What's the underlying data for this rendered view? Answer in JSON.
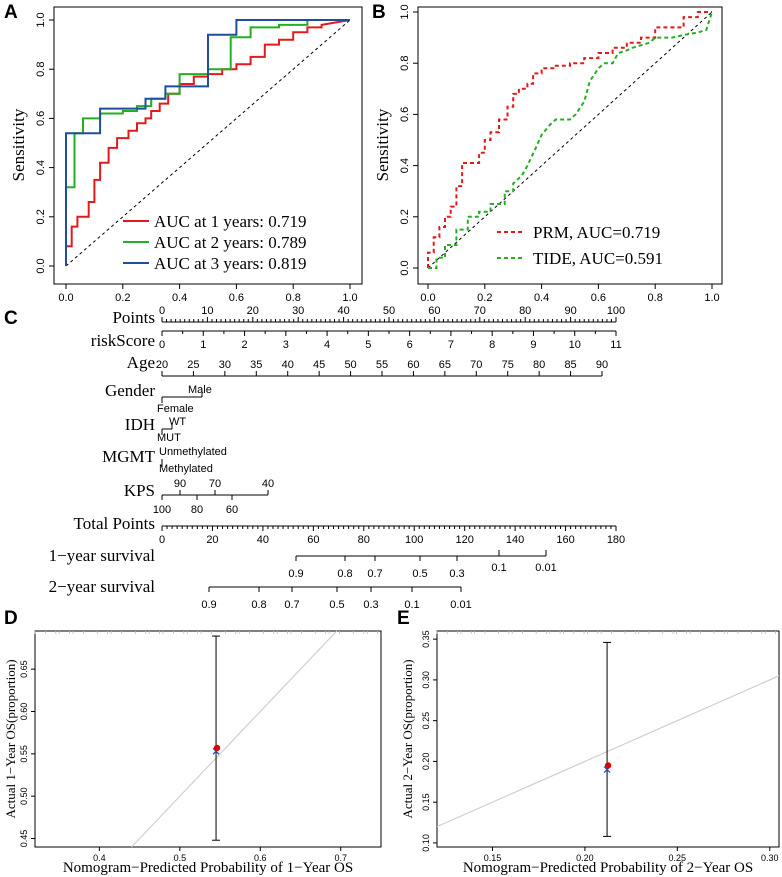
{
  "colors": {
    "red": "#e31a1c",
    "green": "#22b022",
    "blue": "#1f4e9e",
    "black": "#000000",
    "diag": "#000000",
    "calib_line": "#cfcfcf",
    "point_red": "#e00000",
    "point_blue": "#2a5db0"
  },
  "panel_labels": [
    "A",
    "B",
    "C",
    "D",
    "E"
  ],
  "chart_data": [
    {
      "panel": "A",
      "type": "line",
      "title": "",
      "xlabel": "",
      "ylabel": "Sensitivity",
      "xlim": [
        0,
        1
      ],
      "ylim": [
        0,
        1
      ],
      "xticks": [
        "0.0",
        "0.2",
        "0.4",
        "0.6",
        "0.8",
        "1.0"
      ],
      "yticks": [
        "0.0",
        "0.2",
        "0.4",
        "0.6",
        "0.8",
        "1.0"
      ],
      "legend": [
        "AUC at 1 years: 0.719",
        "AUC at 2 years: 0.789",
        "AUC at 3 years: 0.819"
      ],
      "series": [
        {
          "name": "AUC at 1 years: 0.719",
          "color": "red",
          "x": [
            0,
            0,
            0.02,
            0.02,
            0.04,
            0.04,
            0.08,
            0.08,
            0.1,
            0.1,
            0.12,
            0.12,
            0.15,
            0.15,
            0.18,
            0.18,
            0.22,
            0.22,
            0.25,
            0.25,
            0.28,
            0.28,
            0.3,
            0.3,
            0.33,
            0.33,
            0.36,
            0.36,
            0.4,
            0.4,
            0.45,
            0.45,
            0.5,
            0.5,
            0.55,
            0.55,
            0.6,
            0.6,
            0.65,
            0.65,
            0.7,
            0.7,
            0.75,
            0.75,
            0.8,
            0.8,
            0.85,
            0.85,
            0.9,
            0.9,
            1.0
          ],
          "y": [
            0,
            0.08,
            0.08,
            0.16,
            0.16,
            0.2,
            0.2,
            0.26,
            0.26,
            0.35,
            0.35,
            0.42,
            0.42,
            0.48,
            0.48,
            0.52,
            0.52,
            0.55,
            0.55,
            0.58,
            0.58,
            0.6,
            0.6,
            0.63,
            0.63,
            0.66,
            0.66,
            0.7,
            0.7,
            0.74,
            0.74,
            0.77,
            0.77,
            0.78,
            0.78,
            0.8,
            0.8,
            0.82,
            0.82,
            0.85,
            0.85,
            0.9,
            0.9,
            0.92,
            0.92,
            0.95,
            0.95,
            0.97,
            0.97,
            0.98,
            1.0
          ]
        },
        {
          "name": "AUC at 2 years: 0.789",
          "color": "green",
          "x": [
            0,
            0,
            0.03,
            0.03,
            0.06,
            0.06,
            0.12,
            0.12,
            0.2,
            0.2,
            0.25,
            0.25,
            0.3,
            0.3,
            0.35,
            0.35,
            0.4,
            0.4,
            0.5,
            0.5,
            0.58,
            0.58,
            0.65,
            0.65,
            0.75,
            0.75,
            0.85,
            0.85,
            1.0
          ],
          "y": [
            0,
            0.32,
            0.32,
            0.54,
            0.54,
            0.6,
            0.6,
            0.62,
            0.62,
            0.63,
            0.63,
            0.65,
            0.65,
            0.68,
            0.68,
            0.7,
            0.7,
            0.78,
            0.78,
            0.8,
            0.8,
            0.93,
            0.93,
            0.97,
            0.97,
            0.98,
            0.98,
            1.0,
            1.0
          ]
        },
        {
          "name": "AUC at 3 years: 0.819",
          "color": "blue",
          "x": [
            0,
            0,
            0.12,
            0.12,
            0.22,
            0.22,
            0.28,
            0.28,
            0.35,
            0.35,
            0.4,
            0.4,
            0.5,
            0.5,
            0.6,
            0.6,
            0.72,
            0.72,
            0.82,
            0.82,
            1.0
          ],
          "y": [
            0,
            0.54,
            0.54,
            0.64,
            0.64,
            0.64,
            0.64,
            0.68,
            0.68,
            0.73,
            0.73,
            0.73,
            0.73,
            0.94,
            0.94,
            1.0,
            1.0,
            1.0,
            1.0,
            1.0,
            1.0
          ]
        }
      ]
    },
    {
      "panel": "B",
      "type": "line",
      "title": "",
      "xlabel": "",
      "ylabel": "Sensitivity",
      "xlim": [
        0,
        1
      ],
      "ylim": [
        0,
        1
      ],
      "xticks": [
        "0.0",
        "0.2",
        "0.4",
        "0.6",
        "0.8",
        "1.0"
      ],
      "yticks": [
        "0.0",
        "0.2",
        "0.4",
        "0.6",
        "0.8",
        "1.0"
      ],
      "legend": [
        "PRM, AUC=0.719",
        "TIDE, AUC=0.591"
      ],
      "series": [
        {
          "name": "PRM, AUC=0.719",
          "color": "red",
          "x": [
            0,
            0,
            0.02,
            0.02,
            0.04,
            0.04,
            0.06,
            0.06,
            0.08,
            0.08,
            0.1,
            0.1,
            0.12,
            0.12,
            0.15,
            0.15,
            0.18,
            0.18,
            0.2,
            0.2,
            0.22,
            0.22,
            0.25,
            0.25,
            0.28,
            0.28,
            0.3,
            0.3,
            0.32,
            0.32,
            0.35,
            0.35,
            0.37,
            0.37,
            0.4,
            0.4,
            0.45,
            0.45,
            0.5,
            0.5,
            0.55,
            0.55,
            0.6,
            0.6,
            0.65,
            0.65,
            0.7,
            0.7,
            0.75,
            0.75,
            0.8,
            0.8,
            0.9,
            0.9,
            0.95,
            0.95,
            1.0
          ],
          "y": [
            0,
            0.06,
            0.06,
            0.12,
            0.12,
            0.16,
            0.16,
            0.2,
            0.2,
            0.24,
            0.24,
            0.32,
            0.32,
            0.41,
            0.41,
            0.41,
            0.41,
            0.45,
            0.45,
            0.5,
            0.5,
            0.53,
            0.53,
            0.58,
            0.58,
            0.63,
            0.63,
            0.68,
            0.68,
            0.7,
            0.7,
            0.72,
            0.72,
            0.76,
            0.76,
            0.78,
            0.78,
            0.79,
            0.79,
            0.8,
            0.8,
            0.82,
            0.82,
            0.84,
            0.84,
            0.86,
            0.86,
            0.88,
            0.88,
            0.9,
            0.9,
            0.94,
            0.94,
            0.98,
            0.98,
            1.0,
            1.0
          ]
        },
        {
          "name": "TIDE, AUC=0.591",
          "color": "green",
          "x": [
            0,
            0.03,
            0.03,
            0.06,
            0.06,
            0.1,
            0.1,
            0.14,
            0.14,
            0.18,
            0.18,
            0.22,
            0.22,
            0.27,
            0.27,
            0.3,
            0.3,
            0.33,
            0.35,
            0.38,
            0.4,
            0.43,
            0.45,
            0.5,
            0.52,
            0.55,
            0.57,
            0.6,
            0.62,
            0.65,
            0.67,
            0.7,
            0.72,
            0.78,
            0.8,
            0.86,
            0.9,
            0.95,
            0.98,
            1.0
          ],
          "y": [
            0,
            0,
            0.04,
            0.04,
            0.09,
            0.09,
            0.15,
            0.15,
            0.2,
            0.2,
            0.22,
            0.22,
            0.25,
            0.25,
            0.3,
            0.3,
            0.33,
            0.36,
            0.4,
            0.47,
            0.52,
            0.56,
            0.58,
            0.58,
            0.6,
            0.65,
            0.73,
            0.78,
            0.8,
            0.8,
            0.84,
            0.85,
            0.86,
            0.88,
            0.9,
            0.9,
            0.91,
            0.92,
            0.93,
            1.0
          ]
        }
      ]
    },
    {
      "panel": "C",
      "type": "nomogram",
      "rows": [
        {
          "label": "Points",
          "ticks": [
            "0",
            "10",
            "20",
            "30",
            "40",
            "50",
            "60",
            "70",
            "80",
            "90",
            "100"
          ]
        },
        {
          "label": "riskScore",
          "ticks": [
            "0",
            "1",
            "2",
            "3",
            "4",
            "5",
            "6",
            "7",
            "8",
            "9",
            "10",
            "11"
          ]
        },
        {
          "label": "Age",
          "ticks": [
            "20",
            "25",
            "30",
            "35",
            "40",
            "45",
            "50",
            "55",
            "60",
            "65",
            "70",
            "75",
            "80",
            "85",
            "90"
          ]
        },
        {
          "label": "Gender",
          "ticks": [
            "Male",
            "Female"
          ]
        },
        {
          "label": "IDH",
          "ticks": [
            "WT",
            "MUT"
          ]
        },
        {
          "label": "MGMT",
          "ticks": [
            "Unmethylated",
            "Methylated"
          ]
        },
        {
          "label": "KPS",
          "ticks_top": [
            "90",
            "70",
            "40"
          ],
          "ticks_bottom": [
            "100",
            "80",
            "60"
          ]
        },
        {
          "label": "Total Points",
          "ticks": [
            "0",
            "20",
            "40",
            "60",
            "80",
            "100",
            "120",
            "140",
            "160",
            "180"
          ]
        },
        {
          "label": "1−year survival",
          "ticks_top": [
            "0.1",
            "0.01"
          ],
          "ticks_bottom": [
            "0.9",
            "0.8",
            "0.7",
            "0.5",
            "0.3"
          ]
        },
        {
          "label": "2−year survival",
          "ticks": [
            "0.9",
            "0.8",
            "0.7",
            "0.5",
            "0.3",
            "0.1",
            "0.01"
          ]
        }
      ]
    },
    {
      "panel": "D",
      "type": "scatter",
      "xlabel": "Nomogram−Predicted Probability of 1−Year OS",
      "ylabel": "Actual 1−Year OS(proportion)",
      "xlim": [
        0.32,
        0.75
      ],
      "ylim": [
        0.44,
        0.695
      ],
      "xticks": [
        "0.4",
        "0.5",
        "0.6",
        "0.7"
      ],
      "yticks": [
        "0.45",
        "0.50",
        "0.55",
        "0.60",
        "0.65"
      ],
      "point_predicted": [
        0.545,
        0.557
      ],
      "point_observed": [
        0.545,
        0.553
      ],
      "error_bar": [
        0.448,
        0.689
      ]
    },
    {
      "panel": "E",
      "type": "scatter",
      "xlabel": "Nomogram−Predicted Probability of 2−Year OS",
      "ylabel": "Actual 2−Year OS(proportion)",
      "xlim": [
        0.12,
        0.305
      ],
      "ylim": [
        0.095,
        0.36
      ],
      "xticks": [
        "0.15",
        "0.20",
        "0.25",
        "0.30"
      ],
      "yticks": [
        "0.10",
        "0.15",
        "0.20",
        "0.25",
        "0.30",
        "0.35"
      ],
      "point_predicted": [
        0.212,
        0.195
      ],
      "point_observed": [
        0.212,
        0.19
      ],
      "error_bar": [
        0.108,
        0.346
      ]
    }
  ]
}
